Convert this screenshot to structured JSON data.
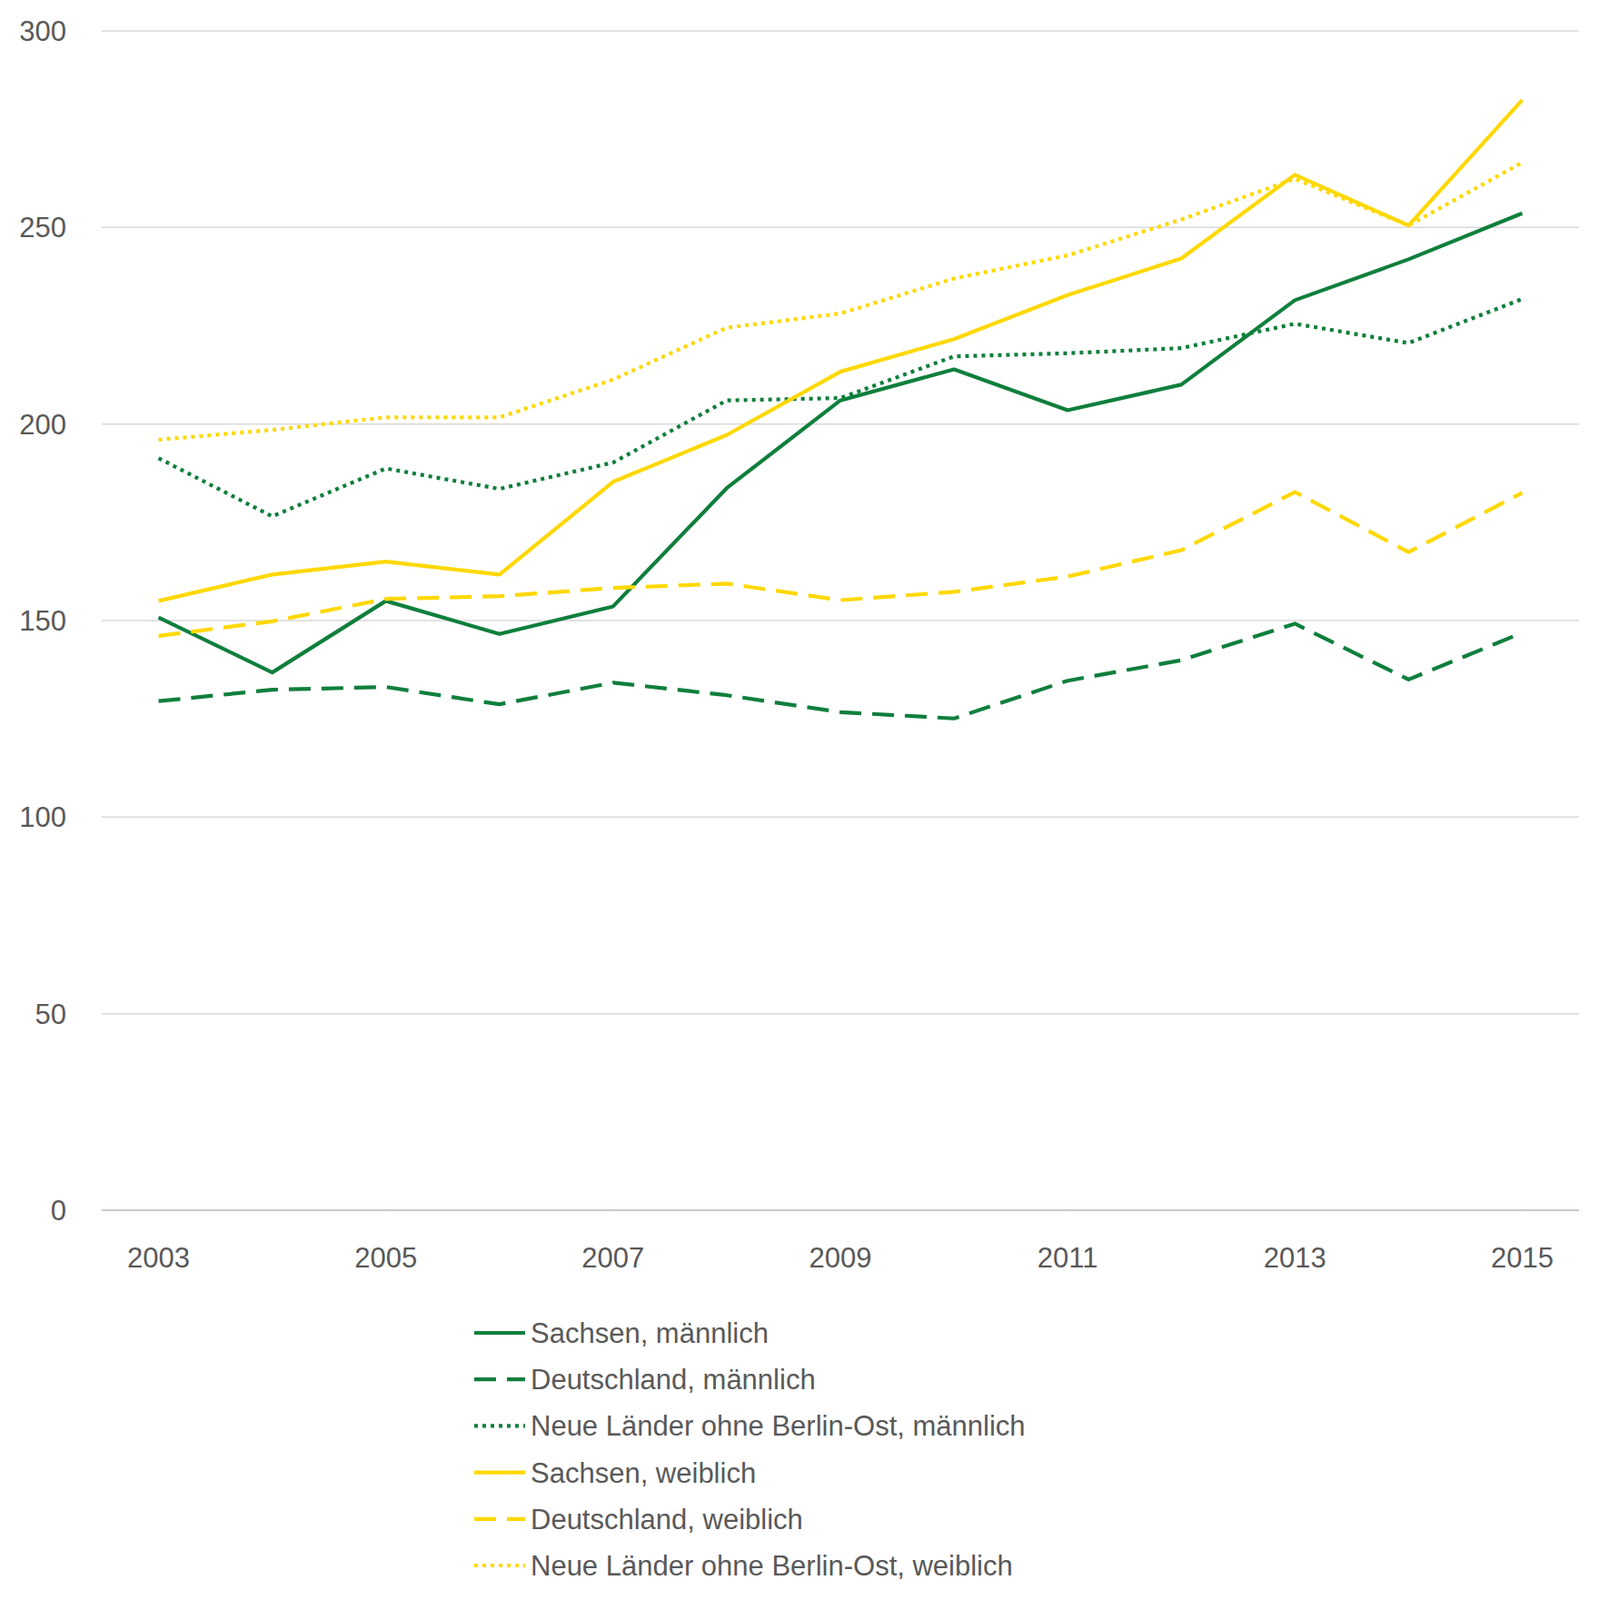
{
  "chart_data": {
    "type": "line",
    "x": [
      2003,
      2004,
      2005,
      2006,
      2007,
      2008,
      2009,
      2010,
      2011,
      2012,
      2013,
      2014,
      2015
    ],
    "xlim": [
      2002.5,
      2015.5
    ],
    "xticks": [
      2003,
      2005,
      2007,
      2009,
      2011,
      2013,
      2015
    ],
    "ylim": [
      0,
      300
    ],
    "yticks": [
      0,
      50,
      100,
      150,
      200,
      250,
      300
    ],
    "grid": true,
    "legend": "bottom",
    "series": [
      {
        "name": "Sachsen, männlich",
        "color": "#0f7f3c",
        "line_style": "solid",
        "values": [
          150.8,
          136.8,
          155,
          146.6,
          153.6,
          183.7,
          206,
          213.9,
          203.5,
          210,
          231.5,
          241.9,
          253.6
        ]
      },
      {
        "name": "Deutschland, männlich",
        "color": "#0f7f3c",
        "line_style": "dashed",
        "values": [
          129.5,
          132.4,
          133.1,
          128.7,
          134.2,
          131,
          126.7,
          125.1,
          134.7,
          139.9,
          149.2,
          135,
          146.9
        ]
      },
      {
        "name": "Neue Länder ohne Berlin-Ost, männlich",
        "color": "#0f7f3c",
        "line_style": "dotted",
        "values": [
          191.3,
          176.5,
          188.7,
          183.5,
          190.2,
          206,
          206.6,
          217.2,
          218,
          219.3,
          225.5,
          220.6,
          231.8
        ]
      },
      {
        "name": "Sachsen, weiblich",
        "color": "#ffd800",
        "line_style": "solid",
        "values": [
          155,
          161.7,
          165,
          161.7,
          185.3,
          197.2,
          213.3,
          221.6,
          232.8,
          242.1,
          263.4,
          250.5,
          282.4
        ]
      },
      {
        "name": "Deutschland, weiblich",
        "color": "#ffd800",
        "line_style": "dashed",
        "values": [
          146.1,
          149.8,
          155.5,
          156.2,
          158.3,
          159.4,
          155.2,
          157.3,
          161.2,
          167.9,
          182.7,
          167.4,
          182.5
        ]
      },
      {
        "name": "Neue Länder ohne Berlin-Ost, weiblich",
        "color": "#ffd800",
        "line_style": "dotted",
        "values": [
          196,
          198.5,
          201.7,
          201.7,
          211.3,
          224.5,
          228.1,
          237,
          242.9,
          252,
          262.4,
          250.5,
          266.5
        ]
      }
    ]
  }
}
